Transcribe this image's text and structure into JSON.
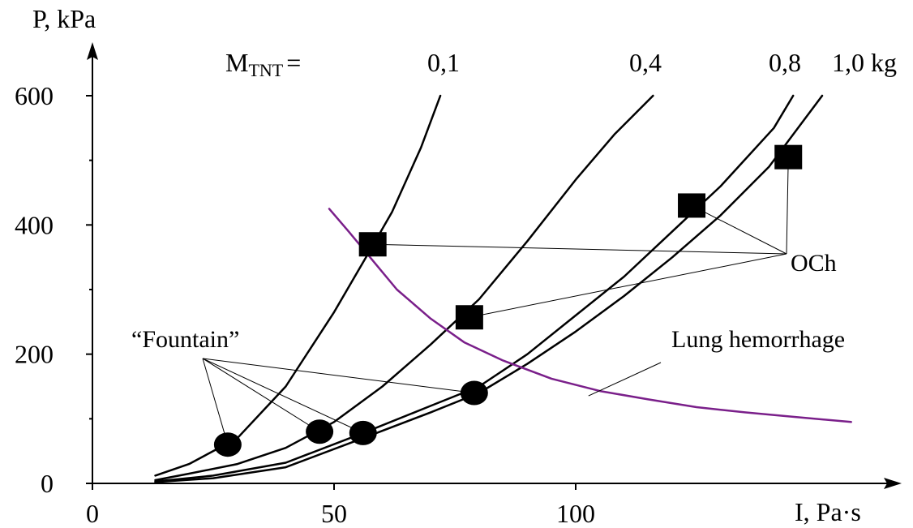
{
  "chart_data": {
    "type": "line",
    "xlabel": "I, Pa·s",
    "ylabel": "P, kPa",
    "xlim": [
      0,
      150
    ],
    "ylim": [
      0,
      600
    ],
    "x_ticks": [
      0,
      50,
      100
    ],
    "y_ticks": [
      0,
      200,
      400,
      600
    ],
    "x_tick_labels": [
      "0",
      "50",
      "100"
    ],
    "y_tick_labels": [
      "0",
      "200",
      "400",
      "600"
    ],
    "y_minor_ticks": [
      100,
      300,
      500
    ],
    "grid": false,
    "mass_label_prefix": "M",
    "mass_label_sub": "TNT",
    "mass_label_eq": "=",
    "series": [
      {
        "name": "0,1",
        "label": "0,1",
        "color": "#000000",
        "points": [
          [
            13,
            12
          ],
          [
            20,
            30
          ],
          [
            30,
            70
          ],
          [
            40,
            150
          ],
          [
            50,
            265
          ],
          [
            57,
            355
          ],
          [
            62,
            420
          ],
          [
            68,
            520
          ],
          [
            72,
            600
          ]
        ]
      },
      {
        "name": "0,4",
        "label": "0,4",
        "color": "#000000",
        "points": [
          [
            13,
            5
          ],
          [
            20,
            15
          ],
          [
            30,
            30
          ],
          [
            40,
            55
          ],
          [
            50,
            95
          ],
          [
            60,
            150
          ],
          [
            70,
            215
          ],
          [
            80,
            285
          ],
          [
            90,
            375
          ],
          [
            100,
            470
          ],
          [
            108,
            540
          ],
          [
            116,
            600
          ]
        ]
      },
      {
        "name": "0,8",
        "label": "0,8",
        "color": "#000000",
        "points": [
          [
            13,
            3
          ],
          [
            25,
            12
          ],
          [
            40,
            32
          ],
          [
            56,
            78
          ],
          [
            70,
            120
          ],
          [
            80,
            150
          ],
          [
            90,
            200
          ],
          [
            100,
            260
          ],
          [
            110,
            320
          ],
          [
            120,
            390
          ],
          [
            130,
            460
          ],
          [
            141,
            550
          ],
          [
            145,
            600
          ]
        ]
      },
      {
        "name": "1,0 kg",
        "label": "1,0 kg",
        "color": "#000000",
        "points": [
          [
            13,
            2
          ],
          [
            25,
            8
          ],
          [
            40,
            25
          ],
          [
            56,
            70
          ],
          [
            70,
            110
          ],
          [
            80,
            140
          ],
          [
            90,
            185
          ],
          [
            100,
            235
          ],
          [
            110,
            290
          ],
          [
            120,
            350
          ],
          [
            130,
            415
          ],
          [
            140,
            490
          ],
          [
            146,
            550
          ],
          [
            151,
            600
          ]
        ]
      },
      {
        "name": "Lung hemorrhage",
        "label": "Lung hemorrhage",
        "color": "#7a1f8a",
        "points": [
          [
            49,
            425
          ],
          [
            53,
            390
          ],
          [
            58,
            345
          ],
          [
            63,
            300
          ],
          [
            70,
            255
          ],
          [
            77,
            218
          ],
          [
            85,
            190
          ],
          [
            95,
            162
          ],
          [
            105,
            143
          ],
          [
            115,
            130
          ],
          [
            125,
            118
          ],
          [
            135,
            110
          ],
          [
            145,
            103
          ],
          [
            157,
            95
          ]
        ]
      }
    ],
    "markers": [
      {
        "shape": "square",
        "group": "OCh",
        "x": 58,
        "y": 370
      },
      {
        "shape": "square",
        "group": "OCh",
        "x": 78,
        "y": 257
      },
      {
        "shape": "square",
        "group": "OCh",
        "x": 124,
        "y": 430
      },
      {
        "shape": "square",
        "group": "OCh",
        "x": 144,
        "y": 505
      },
      {
        "shape": "circle",
        "group": "Fountain",
        "x": 28,
        "y": 60
      },
      {
        "shape": "circle",
        "group": "Fountain",
        "x": 47,
        "y": 80
      },
      {
        "shape": "circle",
        "group": "Fountain",
        "x": 56,
        "y": 78
      },
      {
        "shape": "circle",
        "group": "Fountain",
        "x": 79,
        "y": 140
      }
    ],
    "annotations": [
      {
        "id": "fountain",
        "text": "“Fountain”"
      },
      {
        "id": "och",
        "text": "OCh"
      },
      {
        "id": "lung",
        "text": "Lung hemorrhage"
      }
    ]
  }
}
